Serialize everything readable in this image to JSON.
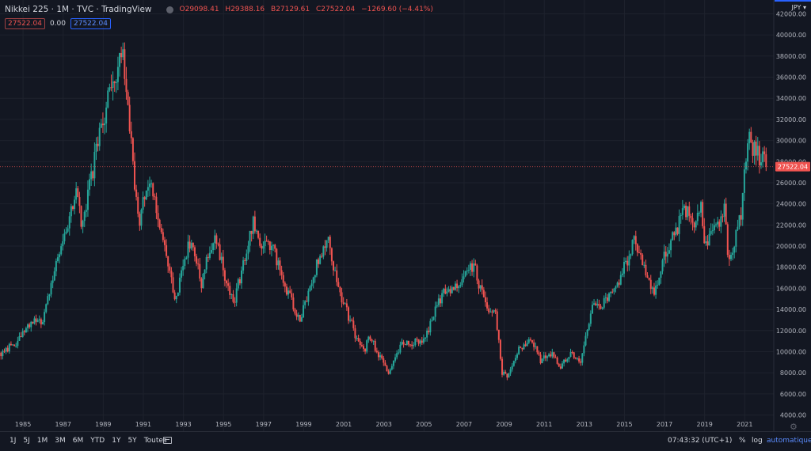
{
  "header": {
    "symbol": "Nikkei 225",
    "interval": "1M",
    "source": "TVC",
    "provider": "TradingView",
    "open": "O29098.41",
    "high": "H29388.16",
    "low": "B27129.61",
    "close": "C27522.04",
    "change": "−1269.60 (−4.41%)",
    "price_box": "27522.04",
    "zero": "0.00",
    "blue_box": "27522.04",
    "currency": "JPY ▾"
  },
  "bottom": {
    "ranges": [
      "1J",
      "5J",
      "1M",
      "3M",
      "6M",
      "YTD",
      "1Y",
      "5Y",
      "Toutes"
    ],
    "time": "07:43:32 (UTC+1)",
    "percent": "%",
    "log": "log",
    "auto": "automatique"
  },
  "colors": {
    "up": "#26a69a",
    "down": "#ef5350",
    "background": "#131722",
    "grid": "#1e222d",
    "axis_text": "#b2b5be"
  },
  "icons": {
    "calendar": "calendar-icon",
    "settings": "gear-icon"
  },
  "chart_data": {
    "type": "candlestick",
    "title": "Nikkei 225",
    "interval": "1M",
    "ylim": [
      4000,
      42000
    ],
    "yticks": [
      4000,
      6000,
      8000,
      10000,
      12000,
      14000,
      16000,
      18000,
      20000,
      22000,
      24000,
      26000,
      28000,
      30000,
      32000,
      34000,
      36000,
      38000,
      40000,
      42000
    ],
    "ytick_labels": [
      "4000.00",
      "6000.00",
      "8000.00",
      "10000.00",
      "12000.00",
      "14000.00",
      "16000.00",
      "18000.00",
      "20000.00",
      "22000.00",
      "24000.00",
      "26000.00",
      "28000.00",
      "30000.00",
      "32000.00",
      "34000.00",
      "36000.00",
      "38000.00",
      "40000.00",
      "42000.00"
    ],
    "xlim": [
      1983.85,
      2022.45
    ],
    "xticks": [
      "1985",
      "1987",
      "1989",
      "1991",
      "1993",
      "1995",
      "1997",
      "1999",
      "2001",
      "2003",
      "2005",
      "2007",
      "2009",
      "2011",
      "2013",
      "2015",
      "2017",
      "2019",
      "2021"
    ],
    "last_price": 27522.04,
    "anchor_points": [
      [
        1983.9,
        9900
      ],
      [
        1984.6,
        10700
      ],
      [
        1985.2,
        12500
      ],
      [
        1986.0,
        13000
      ],
      [
        1986.5,
        17500
      ],
      [
        1987.2,
        21500
      ],
      [
        1987.7,
        26000
      ],
      [
        1987.9,
        21300
      ],
      [
        1988.5,
        27500
      ],
      [
        1989.0,
        32000
      ],
      [
        1989.95,
        38900
      ],
      [
        1990.3,
        31500
      ],
      [
        1990.75,
        22000
      ],
      [
        1991.2,
        26500
      ],
      [
        1991.8,
        22500
      ],
      [
        1992.6,
        15000
      ],
      [
        1993.4,
        21000
      ],
      [
        1993.9,
        16500
      ],
      [
        1994.5,
        21000
      ],
      [
        1995.5,
        14500
      ],
      [
        1996.5,
        22500
      ],
      [
        1996.9,
        19500
      ],
      [
        1997.4,
        20500
      ],
      [
        1998.0,
        16500
      ],
      [
        1998.8,
        13000
      ],
      [
        1999.6,
        18000
      ],
      [
        2000.2,
        20500
      ],
      [
        2000.8,
        15500
      ],
      [
        2001.6,
        11500
      ],
      [
        2002.0,
        10000
      ],
      [
        2002.3,
        11500
      ],
      [
        2003.2,
        7900
      ],
      [
        2003.9,
        10700
      ],
      [
        2005.0,
        11000
      ],
      [
        2005.9,
        15500
      ],
      [
        2006.5,
        16200
      ],
      [
        2007.5,
        18100
      ],
      [
        2008.1,
        14000
      ],
      [
        2008.6,
        13400
      ],
      [
        2008.9,
        8000
      ],
      [
        2009.2,
        7600
      ],
      [
        2009.8,
        10500
      ],
      [
        2010.4,
        11000
      ],
      [
        2010.8,
        9200
      ],
      [
        2011.4,
        9800
      ],
      [
        2011.8,
        8400
      ],
      [
        2012.3,
        10000
      ],
      [
        2012.8,
        8800
      ],
      [
        2013.4,
        14500
      ],
      [
        2013.6,
        14000
      ],
      [
        2014.5,
        15500
      ],
      [
        2015.5,
        20600
      ],
      [
        2016.0,
        18000
      ],
      [
        2016.5,
        15500
      ],
      [
        2017.0,
        19000
      ],
      [
        2017.9,
        22800
      ],
      [
        2018.1,
        23500
      ],
      [
        2018.4,
        21500
      ],
      [
        2018.8,
        24000
      ],
      [
        2018.95,
        20000
      ],
      [
        2019.5,
        21500
      ],
      [
        2020.0,
        23300
      ],
      [
        2020.2,
        18500
      ],
      [
        2020.8,
        23000
      ],
      [
        2021.1,
        28500
      ],
      [
        2021.2,
        30000
      ],
      [
        2021.7,
        28500
      ],
      [
        2021.9,
        29000
      ],
      [
        2022.1,
        27500
      ]
    ]
  }
}
